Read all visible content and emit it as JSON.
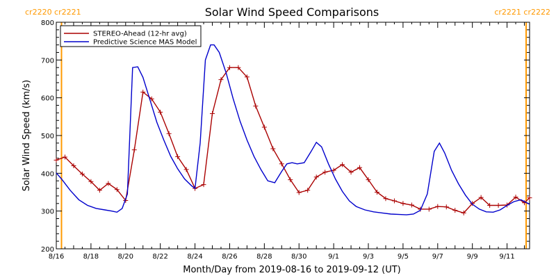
{
  "chart_data": {
    "type": "line",
    "title": "Solar Wind Speed Comparisons",
    "xlabel": "Month/Day from 2019-08-16 to 2019-09-12 (UT)",
    "ylabel": "Solar Wind Speed (km/s)",
    "ylim": [
      200,
      800
    ],
    "yticks": [
      200,
      300,
      400,
      500,
      600,
      700,
      800
    ],
    "xlim": [
      0,
      27.3
    ],
    "xticks": [
      {
        "x": 0,
        "label": "8/16"
      },
      {
        "x": 2,
        "label": "8/18"
      },
      {
        "x": 4,
        "label": "8/20"
      },
      {
        "x": 6,
        "label": "8/22"
      },
      {
        "x": 8,
        "label": "8/24"
      },
      {
        "x": 10,
        "label": "8/26"
      },
      {
        "x": 12,
        "label": "8/28"
      },
      {
        "x": 14,
        "label": "8/30"
      },
      {
        "x": 16,
        "label": "9/1"
      },
      {
        "x": 18,
        "label": "9/3"
      },
      {
        "x": 20,
        "label": "9/5"
      },
      {
        "x": 22,
        "label": "9/7"
      },
      {
        "x": 24,
        "label": "9/9"
      },
      {
        "x": 26,
        "label": "9/11"
      }
    ],
    "carrington_markers": [
      {
        "x": 0.3,
        "label": "cr2220 cr2221",
        "side": "left"
      },
      {
        "x": 27.1,
        "label": "cr2221 cr2222",
        "side": "right"
      }
    ],
    "legend_position": "top-left",
    "series": [
      {
        "name": "STEREO-Ahead (12-hr avg)",
        "color": "#aa0000",
        "marker": "plus",
        "x": [
          0,
          0.5,
          1,
          1.5,
          2,
          2.5,
          3,
          3.5,
          4,
          4.5,
          5,
          5.5,
          6,
          6.5,
          7,
          7.5,
          8,
          8.5,
          9,
          9.5,
          10,
          10.5,
          11,
          11.5,
          12,
          12.5,
          13,
          13.5,
          14,
          14.5,
          15,
          15.5,
          16,
          16.5,
          17,
          17.5,
          18,
          18.5,
          19,
          19.5,
          20,
          20.5,
          21,
          21.5,
          22,
          22.5,
          23,
          23.5,
          24,
          24.5,
          25,
          25.5,
          26,
          26.5,
          27,
          27.3
        ],
        "values": [
          435,
          443,
          420,
          398,
          378,
          355,
          373,
          357,
          328,
          462,
          615,
          597,
          562,
          505,
          444,
          410,
          360,
          370,
          558,
          648,
          680,
          680,
          655,
          578,
          522,
          465,
          425,
          383,
          349,
          355,
          390,
          403,
          408,
          423,
          403,
          415,
          383,
          350,
          333,
          327,
          320,
          316,
          305,
          305,
          312,
          311,
          302,
          295,
          320,
          336,
          315,
          315,
          316,
          337,
          322,
          335
        ]
      },
      {
        "name": "Predictive Science MAS Model",
        "color": "#0000cc",
        "marker": "none",
        "x": [
          0,
          0.3,
          0.8,
          1.3,
          1.8,
          2.3,
          2.8,
          3.2,
          3.5,
          3.8,
          4.1,
          4.4,
          4.7,
          5.0,
          5.4,
          5.8,
          6.2,
          6.6,
          7.0,
          7.4,
          7.8,
          8.0,
          8.3,
          8.6,
          8.9,
          9.1,
          9.4,
          9.8,
          10.2,
          10.6,
          11.0,
          11.4,
          11.8,
          12.2,
          12.6,
          13.0,
          13.3,
          13.6,
          13.9,
          14.3,
          14.7,
          15.0,
          15.3,
          15.7,
          16.1,
          16.5,
          16.9,
          17.3,
          17.8,
          18.3,
          18.8,
          19.3,
          19.8,
          20.2,
          20.6,
          21.0,
          21.4,
          21.8,
          22.1,
          22.4,
          22.8,
          23.2,
          23.6,
          24.0,
          24.4,
          24.8,
          25.2,
          25.6,
          26.0,
          26.4,
          26.8,
          27.3
        ],
        "values": [
          401,
          385,
          355,
          330,
          315,
          307,
          303,
          300,
          297,
          307,
          345,
          680,
          682,
          654,
          595,
          535,
          488,
          445,
          412,
          385,
          367,
          360,
          480,
          700,
          740,
          740,
          720,
          665,
          598,
          538,
          488,
          445,
          410,
          380,
          375,
          405,
          425,
          428,
          425,
          428,
          458,
          482,
          470,
          425,
          385,
          352,
          327,
          312,
          303,
          298,
          295,
          292,
          291,
          290,
          292,
          302,
          345,
          458,
          480,
          454,
          408,
          372,
          342,
          318,
          305,
          298,
          297,
          303,
          315,
          325,
          330,
          318
        ]
      }
    ]
  }
}
